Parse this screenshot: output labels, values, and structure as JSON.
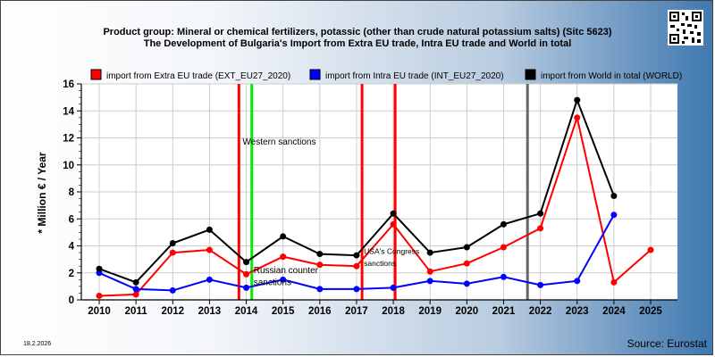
{
  "chart_data": {
    "type": "line",
    "title_line1": "Product group: Mineral or chemical fertilizers, potassic (other than crude natural potassium salts) (Sitc 5623)",
    "title_line2": "The Development of Bulgaria's Import from Extra EU trade, Intra EU trade and World in total",
    "ylabel": "* Million € / Year",
    "xlabel": "",
    "ylim": [
      0,
      16
    ],
    "yticks": [
      0,
      2,
      4,
      6,
      8,
      10,
      12,
      14,
      16
    ],
    "x": [
      2010,
      2011,
      2012,
      2013,
      2014,
      2015,
      2016,
      2017,
      2018,
      2019,
      2020,
      2021,
      2022,
      2023,
      2024,
      2025
    ],
    "grid": true,
    "legend_position": "top",
    "series": [
      {
        "name": "import from Extra EU trade (EXT_EU27_2020)",
        "color": "#ff0000",
        "values": [
          0.3,
          0.4,
          3.5,
          3.7,
          1.9,
          3.2,
          2.6,
          2.5,
          5.6,
          2.1,
          2.7,
          3.9,
          5.3,
          13.5,
          1.3,
          3.7
        ]
      },
      {
        "name": "import from Intra EU trade (INT_EU27_2020)",
        "color": "#0000ff",
        "values": [
          2.0,
          0.8,
          0.7,
          1.5,
          0.9,
          1.5,
          0.8,
          0.8,
          0.9,
          1.4,
          1.2,
          1.7,
          1.1,
          1.4,
          6.3,
          null
        ]
      },
      {
        "name": "import from World in total (WORLD)",
        "color": "#000000",
        "values": [
          2.3,
          1.3,
          4.2,
          5.2,
          2.8,
          4.7,
          3.4,
          3.3,
          6.4,
          3.5,
          3.9,
          5.6,
          6.4,
          14.8,
          7.7,
          null
        ]
      }
    ],
    "event_lines": [
      {
        "x": 2013.8,
        "color": "#ff0000"
      },
      {
        "x": 2014.15,
        "color": "#00ee00"
      },
      {
        "x": 2017.15,
        "color": "#ff0000"
      },
      {
        "x": 2018.05,
        "color": "#ff0000"
      },
      {
        "x": 2021.65,
        "color": "#666666"
      }
    ],
    "annotations": [
      {
        "text": "Western sanctions",
        "x": 2013.9,
        "y": 11.5,
        "size": "normal"
      },
      {
        "text": "Russian counter",
        "x": 2014.2,
        "y": 2.0,
        "size": "normal"
      },
      {
        "text": "sanctions",
        "x": 2014.2,
        "y": 1.1,
        "size": "normal"
      },
      {
        "text": "USA's Congress",
        "x": 2017.2,
        "y": 3.4,
        "size": "small"
      },
      {
        "text": "sanctions",
        "x": 2017.2,
        "y": 2.5,
        "size": "small"
      }
    ]
  },
  "footer": {
    "date": "18.2.2026",
    "source": "Source: Eurostat"
  }
}
